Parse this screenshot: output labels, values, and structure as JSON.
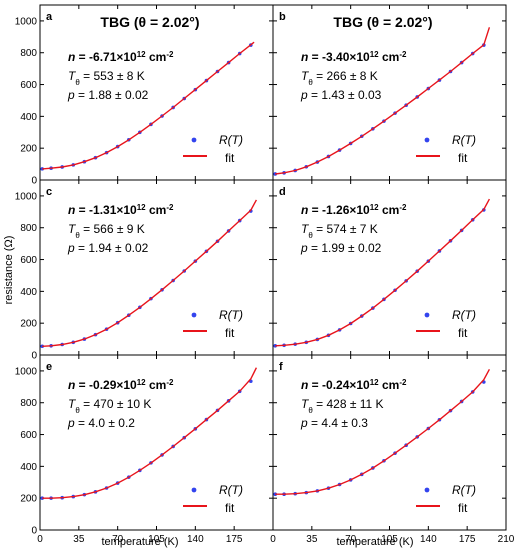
{
  "chart_data": {
    "type": "scatter",
    "xlabel": "temperature (K)",
    "ylabel": "resistance (Ω)",
    "xlim": [
      0,
      210
    ],
    "ylim": [
      0,
      1100
    ],
    "xticks": [
      0,
      35,
      70,
      105,
      140,
      175,
      210
    ],
    "yticks": [
      0,
      200,
      400,
      600,
      800,
      1000
    ],
    "legend": {
      "position": "lower-right",
      "data_label": "R(T)",
      "fit_label": "fit"
    },
    "colors": {
      "data": "#3344ee",
      "fit": "#e8141b"
    },
    "panels": [
      {
        "label": "a",
        "title": "TBG (θ = 2.02°)",
        "n_bold": "n",
        "n_text": " = -6.71×10",
        "n_exp": "12",
        "n_unit": " cm",
        "n_unit_exp": "-2",
        "T_sym": "T",
        "T_sub": "θ",
        "T_text": " = 553 ± 8 K",
        "p_sym": "p",
        "p_text": " = 1.88 ± 0.02",
        "series": [
          {
            "name": "R(T)",
            "x": [
              2,
              10,
              20,
              30,
              40,
              50,
              60,
              70,
              80,
              90,
              100,
              110,
              120,
              130,
              140,
              150,
              160,
              170,
              180,
              190
            ],
            "y": [
              70,
              74,
              82,
              95,
              115,
              140,
              172,
              210,
              253,
              300,
              350,
              402,
              456,
              512,
              568,
              625,
              682,
              738,
              795,
              848
            ]
          },
          {
            "name": "fit",
            "x": [
              2,
              10,
              20,
              30,
              40,
              50,
              60,
              70,
              80,
              90,
              100,
              110,
              120,
              130,
              140,
              150,
              160,
              170,
              180,
              190,
              193
            ],
            "y": [
              70,
              74,
              82,
              95,
              115,
              140,
              172,
              210,
              253,
              300,
              350,
              402,
              456,
              512,
              568,
              625,
              682,
              738,
              795,
              850,
              866
            ]
          }
        ]
      },
      {
        "label": "b",
        "title": "TBG (θ = 2.02°)",
        "n_bold": "n",
        "n_text": " = -3.40×10",
        "n_exp": "12",
        "n_unit": " cm",
        "n_unit_exp": "-2",
        "T_sym": "T",
        "T_sub": "θ",
        "T_text": " = 266 ± 8 K",
        "p_sym": "p",
        "p_text": " = 1.43 ± 0.03",
        "series": [
          {
            "name": "R(T)",
            "x": [
              2,
              10,
              20,
              30,
              40,
              50,
              60,
              70,
              80,
              90,
              100,
              110,
              120,
              130,
              140,
              150,
              160,
              170,
              180,
              190
            ],
            "y": [
              38,
              45,
              60,
              83,
              113,
              148,
              188,
              230,
              275,
              322,
              370,
              420,
              470,
              522,
              575,
              628,
              682,
              738,
              795,
              848
            ]
          },
          {
            "name": "fit",
            "x": [
              2,
              10,
              20,
              30,
              40,
              50,
              60,
              70,
              80,
              90,
              100,
              110,
              120,
              130,
              140,
              150,
              160,
              170,
              180,
              190,
              195
            ],
            "y": [
              38,
              45,
              60,
              83,
              113,
              148,
              188,
              230,
              275,
              322,
              370,
              420,
              470,
              522,
              575,
              628,
              682,
              738,
              795,
              850,
              960
            ]
          }
        ]
      },
      {
        "label": "c",
        "title": "",
        "n_bold": "n",
        "n_text": " = -1.31×10",
        "n_exp": "12",
        "n_unit": " cm",
        "n_unit_exp": "-2",
        "T_sym": "T",
        "T_sub": "θ",
        "T_text": " = 566 ± 9 K",
        "p_sym": "p",
        "p_text": " = 1.94 ± 0.02",
        "series": [
          {
            "name": "R(T)",
            "x": [
              2,
              10,
              20,
              30,
              40,
              50,
              60,
              70,
              80,
              90,
              100,
              110,
              120,
              130,
              140,
              150,
              160,
              170,
              180,
              190
            ],
            "y": [
              55,
              58,
              66,
              80,
              100,
              128,
              162,
              203,
              250,
              300,
              354,
              410,
              468,
              528,
              590,
              652,
              715,
              780,
              845,
              905
            ]
          },
          {
            "name": "fit",
            "x": [
              2,
              10,
              20,
              30,
              40,
              50,
              60,
              70,
              80,
              90,
              100,
              110,
              120,
              130,
              140,
              150,
              160,
              170,
              180,
              190,
              195
            ],
            "y": [
              55,
              58,
              66,
              80,
              100,
              128,
              162,
              203,
              250,
              300,
              354,
              410,
              468,
              528,
              590,
              652,
              715,
              780,
              845,
              910,
              975
            ]
          }
        ]
      },
      {
        "label": "d",
        "title": "",
        "n_bold": "n",
        "n_text": " = -1.26×10",
        "n_exp": "12",
        "n_unit": " cm",
        "n_unit_exp": "-2",
        "T_sym": "T",
        "T_sub": "θ",
        "T_text": " = 574 ± 7 K",
        "p_sym": "p",
        "p_text": " = 1.99 ± 0.02",
        "series": [
          {
            "name": "R(T)",
            "x": [
              2,
              10,
              20,
              30,
              40,
              50,
              60,
              70,
              80,
              90,
              100,
              110,
              120,
              130,
              140,
              150,
              160,
              170,
              180,
              190
            ],
            "y": [
              58,
              61,
              68,
              80,
              98,
              124,
              158,
              198,
              245,
              295,
              350,
              407,
              466,
              527,
              590,
              654,
              718,
              783,
              850,
              912
            ]
          },
          {
            "name": "fit",
            "x": [
              2,
              10,
              20,
              30,
              40,
              50,
              60,
              70,
              80,
              90,
              100,
              110,
              120,
              130,
              140,
              150,
              160,
              170,
              180,
              190,
              195
            ],
            "y": [
              58,
              61,
              68,
              80,
              98,
              124,
              158,
              198,
              245,
              295,
              350,
              407,
              466,
              527,
              590,
              654,
              718,
              783,
              850,
              915,
              980
            ]
          }
        ]
      },
      {
        "label": "e",
        "title": "",
        "n_bold": "n",
        "n_text": " = -0.29×10",
        "n_exp": "12",
        "n_unit": " cm",
        "n_unit_exp": "-2",
        "T_sym": "T",
        "T_sub": "θ",
        "T_text": " = 470 ± 10 K",
        "p_sym": "p",
        "p_text": " = 4.0 ± 0.2",
        "series": [
          {
            "name": "R(T)",
            "x": [
              2,
              10,
              20,
              30,
              40,
              50,
              60,
              70,
              80,
              90,
              100,
              110,
              120,
              130,
              140,
              150,
              160,
              170,
              180,
              190
            ],
            "y": [
              200,
              200,
              203,
              210,
              222,
              240,
              264,
              295,
              332,
              375,
              422,
              472,
              525,
              580,
              636,
              694,
              752,
              812,
              872,
              935
            ]
          },
          {
            "name": "fit",
            "x": [
              2,
              10,
              20,
              30,
              40,
              50,
              60,
              70,
              80,
              90,
              100,
              110,
              120,
              130,
              140,
              150,
              160,
              170,
              180,
              190,
              195
            ],
            "y": [
              200,
              200,
              203,
              210,
              222,
              240,
              264,
              295,
              332,
              375,
              422,
              472,
              525,
              580,
              636,
              694,
              752,
              812,
              872,
              950,
              1020
            ]
          }
        ]
      },
      {
        "label": "f",
        "title": "",
        "n_bold": "n",
        "n_text": " = -0.24×10",
        "n_exp": "12",
        "n_unit": " cm",
        "n_unit_exp": "-2",
        "T_sym": "T",
        "T_sub": "θ",
        "T_text": " = 428 ± 11 K",
        "p_sym": "p",
        "p_text": " = 4.4 ± 0.3",
        "series": [
          {
            "name": "R(T)",
            "x": [
              2,
              10,
              20,
              30,
              40,
              50,
              60,
              70,
              80,
              90,
              100,
              110,
              120,
              130,
              140,
              150,
              160,
              170,
              180,
              190
            ],
            "y": [
              225,
              225,
              228,
              235,
              246,
              263,
              286,
              315,
              350,
              390,
              435,
              483,
              533,
              585,
              638,
              693,
              750,
              808,
              868,
              930
            ]
          },
          {
            "name": "fit",
            "x": [
              2,
              10,
              20,
              30,
              40,
              50,
              60,
              70,
              80,
              90,
              100,
              110,
              120,
              130,
              140,
              150,
              160,
              170,
              180,
              190,
              195
            ],
            "y": [
              225,
              225,
              228,
              235,
              246,
              263,
              286,
              315,
              350,
              390,
              435,
              483,
              533,
              585,
              638,
              693,
              750,
              808,
              868,
              945,
              1010
            ]
          }
        ]
      }
    ]
  }
}
